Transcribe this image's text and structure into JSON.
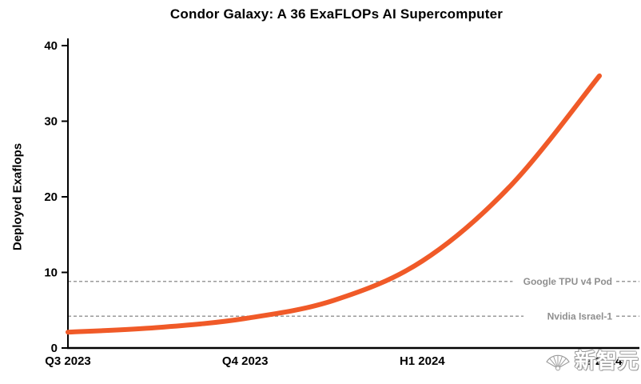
{
  "chart_data": {
    "type": "line",
    "title": "Condor Galaxy: A 36 ExaFLOPs AI Supercomputer",
    "xlabel": "",
    "ylabel": "Deployed Exaflops",
    "categories": [
      "Q3 2023",
      "Q4 2023",
      "H1 2024",
      "H2 2024"
    ],
    "series": [
      {
        "name": "Deployed Exaflops",
        "values": [
          2.1,
          3.9,
          11.5,
          36
        ],
        "color": "#F05A28",
        "curve_points": [
          {
            "x": 0,
            "y": 2.1
          },
          {
            "x": 0.5,
            "y": 2.7
          },
          {
            "x": 1,
            "y": 3.9
          },
          {
            "x": 1.5,
            "y": 6.3
          },
          {
            "x": 2,
            "y": 11.5
          },
          {
            "x": 2.5,
            "y": 21.5
          },
          {
            "x": 3,
            "y": 36
          }
        ]
      }
    ],
    "y_ticks": [
      0,
      10,
      20,
      30,
      40
    ],
    "ylim": [
      0,
      40
    ],
    "grid": false,
    "legend": "none",
    "annotations": [
      {
        "label": "Google TPU v4 Pod",
        "value": 8.8
      },
      {
        "label": "Nvidia Israel-1",
        "value": 4.2
      }
    ]
  },
  "watermark": {
    "text": "新智元"
  },
  "colors": {
    "line": "#F05A28",
    "annotation_line": "#9a9a9a",
    "annotation_text": "#8f8f8f",
    "axis": "#000000",
    "background": "#ffffff"
  }
}
